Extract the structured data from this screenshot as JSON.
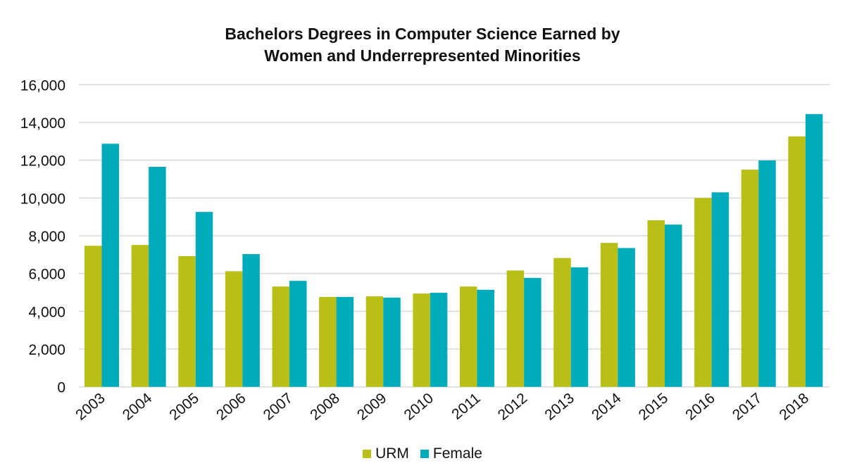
{
  "chart_data": {
    "type": "bar",
    "title": "Bachelors Degrees in Computer Science Earned by Women and Underrepresented Minorities",
    "title_lines": [
      "Bachelors Degrees in Computer Science Earned by",
      "Women and Underrepresented Minorities"
    ],
    "xlabel": "",
    "ylabel": "",
    "ylim": [
      0,
      16000
    ],
    "yticks": [
      0,
      2000,
      4000,
      6000,
      8000,
      10000,
      12000,
      14000,
      16000
    ],
    "ytick_labels": [
      "0",
      "2,000",
      "4,000",
      "6,000",
      "8,000",
      "10,000",
      "12,000",
      "14,000",
      "16,000"
    ],
    "grid": true,
    "legend_position": "bottom",
    "categories": [
      "2003",
      "2004",
      "2005",
      "2006",
      "2007",
      "2008",
      "2009",
      "2010",
      "2011",
      "2012",
      "2013",
      "2014",
      "2015",
      "2016",
      "2017",
      "2018"
    ],
    "series": [
      {
        "name": "URM",
        "color": "#b8bf17",
        "values": [
          7470,
          7510,
          6920,
          6120,
          5310,
          4760,
          4790,
          4940,
          5310,
          6160,
          6820,
          7620,
          8820,
          10000,
          11500,
          13260
        ]
      },
      {
        "name": "Female",
        "color": "#00abbc",
        "values": [
          12870,
          11650,
          9260,
          7030,
          5610,
          4760,
          4720,
          4980,
          5140,
          5770,
          6330,
          7350,
          8590,
          10300,
          11990,
          14440
        ]
      }
    ]
  }
}
